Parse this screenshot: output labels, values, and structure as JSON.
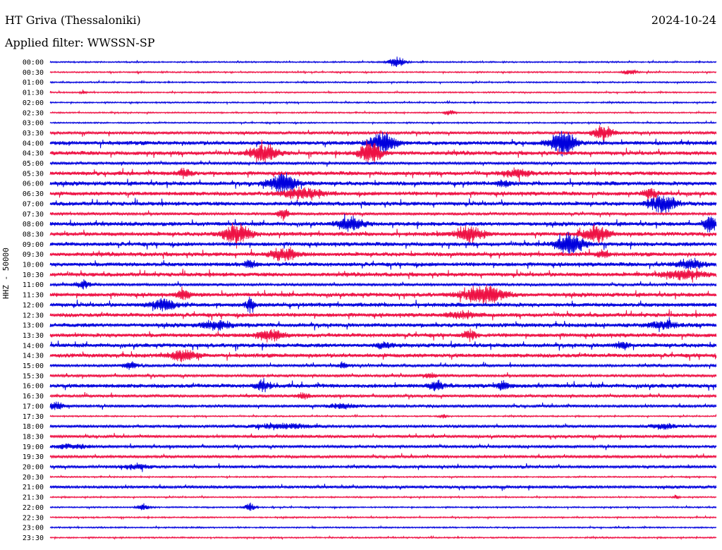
{
  "header": {
    "station": "HT Griva (Thessaloniki)",
    "date": "2024-10-24",
    "filter_prefix": "Applied filter:",
    "filter_name": "WWSSN-SP"
  },
  "y_axis_label": "HHZ - 50000",
  "colors": {
    "line_a": "#0000dd",
    "line_b": "#ee1144",
    "background": "#ffffff"
  },
  "chart_data": {
    "type": "line",
    "title": "HT Griva (Thessaloniki)",
    "subtitle": "Applied filter: WWSSN-SP",
    "ylabel": "HHZ - 50000",
    "xlabel": "",
    "rows": [
      {
        "label": "00:00",
        "amplitude": 1,
        "events": [
          {
            "pos": 0.52,
            "amp": 8,
            "width": 0.012
          }
        ]
      },
      {
        "label": "00:30",
        "amplitude": 1,
        "events": [
          {
            "pos": 0.87,
            "amp": 4,
            "width": 0.01
          }
        ]
      },
      {
        "label": "01:00",
        "amplitude": 1,
        "events": []
      },
      {
        "label": "01:30",
        "amplitude": 1,
        "events": [
          {
            "pos": 0.05,
            "amp": 3,
            "width": 0.004
          }
        ]
      },
      {
        "label": "02:00",
        "amplitude": 1,
        "events": []
      },
      {
        "label": "02:30",
        "amplitude": 1,
        "events": [
          {
            "pos": 0.6,
            "amp": 4,
            "width": 0.008
          }
        ]
      },
      {
        "label": "03:00",
        "amplitude": 1,
        "events": []
      },
      {
        "label": "03:30",
        "amplitude": 2,
        "events": [
          {
            "pos": 0.83,
            "amp": 10,
            "width": 0.015
          }
        ]
      },
      {
        "label": "04:00",
        "amplitude": 3,
        "events": [
          {
            "pos": 0.5,
            "amp": 14,
            "width": 0.02
          },
          {
            "pos": 0.77,
            "amp": 18,
            "width": 0.02
          }
        ]
      },
      {
        "label": "04:30",
        "amplitude": 3,
        "events": [
          {
            "pos": 0.32,
            "amp": 14,
            "width": 0.02
          },
          {
            "pos": 0.48,
            "amp": 20,
            "width": 0.015
          }
        ]
      },
      {
        "label": "05:00",
        "amplitude": 2,
        "events": []
      },
      {
        "label": "05:30",
        "amplitude": 3,
        "events": [
          {
            "pos": 0.2,
            "amp": 7,
            "width": 0.01
          },
          {
            "pos": 0.7,
            "amp": 6,
            "width": 0.02
          }
        ]
      },
      {
        "label": "06:00",
        "amplitude": 3,
        "events": [
          {
            "pos": 0.35,
            "amp": 16,
            "width": 0.02
          },
          {
            "pos": 0.68,
            "amp": 5,
            "width": 0.01
          }
        ]
      },
      {
        "label": "06:30",
        "amplitude": 3,
        "events": [
          {
            "pos": 0.38,
            "amp": 8,
            "width": 0.03
          },
          {
            "pos": 0.9,
            "amp": 7,
            "width": 0.01
          }
        ]
      },
      {
        "label": "07:00",
        "amplitude": 3,
        "events": [
          {
            "pos": 0.92,
            "amp": 12,
            "width": 0.02
          }
        ]
      },
      {
        "label": "07:30",
        "amplitude": 2,
        "events": [
          {
            "pos": 0.35,
            "amp": 8,
            "width": 0.01
          }
        ]
      },
      {
        "label": "08:00",
        "amplitude": 3,
        "events": [
          {
            "pos": 0.45,
            "amp": 10,
            "width": 0.02
          },
          {
            "pos": 0.99,
            "amp": 14,
            "width": 0.008
          }
        ]
      },
      {
        "label": "08:30",
        "amplitude": 3,
        "events": [
          {
            "pos": 0.28,
            "amp": 14,
            "width": 0.02
          },
          {
            "pos": 0.63,
            "amp": 12,
            "width": 0.02
          },
          {
            "pos": 0.82,
            "amp": 12,
            "width": 0.02
          }
        ]
      },
      {
        "label": "09:00",
        "amplitude": 3,
        "events": [
          {
            "pos": 0.78,
            "amp": 16,
            "width": 0.02
          }
        ]
      },
      {
        "label": "09:30",
        "amplitude": 3,
        "events": [
          {
            "pos": 0.35,
            "amp": 9,
            "width": 0.02
          },
          {
            "pos": 0.83,
            "amp": 6,
            "width": 0.01
          }
        ]
      },
      {
        "label": "10:00",
        "amplitude": 3,
        "events": [
          {
            "pos": 0.3,
            "amp": 6,
            "width": 0.01
          },
          {
            "pos": 0.96,
            "amp": 6,
            "width": 0.02
          }
        ]
      },
      {
        "label": "10:30",
        "amplitude": 3,
        "events": [
          {
            "pos": 0.95,
            "amp": 6,
            "width": 0.03
          }
        ]
      },
      {
        "label": "11:00",
        "amplitude": 2,
        "events": [
          {
            "pos": 0.05,
            "amp": 6,
            "width": 0.01
          }
        ]
      },
      {
        "label": "11:30",
        "amplitude": 3,
        "events": [
          {
            "pos": 0.65,
            "amp": 14,
            "width": 0.03
          },
          {
            "pos": 0.2,
            "amp": 8,
            "width": 0.01
          }
        ]
      },
      {
        "label": "12:00",
        "amplitude": 3,
        "events": [
          {
            "pos": 0.17,
            "amp": 8,
            "width": 0.02
          },
          {
            "pos": 0.3,
            "amp": 10,
            "width": 0.006
          }
        ]
      },
      {
        "label": "12:30",
        "amplitude": 3,
        "events": [
          {
            "pos": 0.62,
            "amp": 5,
            "width": 0.02
          }
        ]
      },
      {
        "label": "13:00",
        "amplitude": 3,
        "events": [
          {
            "pos": 0.25,
            "amp": 7,
            "width": 0.02
          },
          {
            "pos": 0.92,
            "amp": 6,
            "width": 0.02
          }
        ]
      },
      {
        "label": "13:30",
        "amplitude": 3,
        "events": [
          {
            "pos": 0.33,
            "amp": 7,
            "width": 0.02
          },
          {
            "pos": 0.63,
            "amp": 7,
            "width": 0.01
          }
        ]
      },
      {
        "label": "14:00",
        "amplitude": 3,
        "events": [
          {
            "pos": 0.5,
            "amp": 5,
            "width": 0.01
          },
          {
            "pos": 0.86,
            "amp": 5,
            "width": 0.01
          }
        ]
      },
      {
        "label": "14:30",
        "amplitude": 3,
        "events": [
          {
            "pos": 0.2,
            "amp": 8,
            "width": 0.02
          }
        ]
      },
      {
        "label": "15:00",
        "amplitude": 2,
        "events": [
          {
            "pos": 0.12,
            "amp": 6,
            "width": 0.01
          },
          {
            "pos": 0.44,
            "amp": 5,
            "width": 0.006
          }
        ]
      },
      {
        "label": "15:30",
        "amplitude": 2,
        "events": [
          {
            "pos": 0.57,
            "amp": 4,
            "width": 0.01
          }
        ]
      },
      {
        "label": "16:00",
        "amplitude": 3,
        "events": [
          {
            "pos": 0.32,
            "amp": 8,
            "width": 0.01
          },
          {
            "pos": 0.58,
            "amp": 8,
            "width": 0.01
          },
          {
            "pos": 0.68,
            "amp": 7,
            "width": 0.008
          }
        ]
      },
      {
        "label": "16:30",
        "amplitude": 2,
        "events": [
          {
            "pos": 0.38,
            "amp": 5,
            "width": 0.01
          }
        ]
      },
      {
        "label": "17:00",
        "amplitude": 2,
        "events": [
          {
            "pos": 0.01,
            "amp": 6,
            "width": 0.01
          },
          {
            "pos": 0.44,
            "amp": 4,
            "width": 0.02
          }
        ]
      },
      {
        "label": "17:30",
        "amplitude": 1,
        "events": [
          {
            "pos": 0.59,
            "amp": 3,
            "width": 0.005
          }
        ]
      },
      {
        "label": "18:00",
        "amplitude": 2,
        "events": [
          {
            "pos": 0.35,
            "amp": 4,
            "width": 0.04
          },
          {
            "pos": 0.92,
            "amp": 4,
            "width": 0.02
          }
        ]
      },
      {
        "label": "18:30",
        "amplitude": 2,
        "events": []
      },
      {
        "label": "19:00",
        "amplitude": 2,
        "events": [
          {
            "pos": 0.03,
            "amp": 3,
            "width": 0.03
          }
        ]
      },
      {
        "label": "19:30",
        "amplitude": 2,
        "events": []
      },
      {
        "label": "20:00",
        "amplitude": 2,
        "events": [
          {
            "pos": 0.13,
            "amp": 4,
            "width": 0.02
          }
        ]
      },
      {
        "label": "20:30",
        "amplitude": 1,
        "events": []
      },
      {
        "label": "21:00",
        "amplitude": 2,
        "events": []
      },
      {
        "label": "21:30",
        "amplitude": 1,
        "events": [
          {
            "pos": 0.94,
            "amp": 3,
            "width": 0.005
          }
        ]
      },
      {
        "label": "22:00",
        "amplitude": 1,
        "events": [
          {
            "pos": 0.14,
            "amp": 5,
            "width": 0.008
          },
          {
            "pos": 0.3,
            "amp": 6,
            "width": 0.008
          }
        ]
      },
      {
        "label": "22:30",
        "amplitude": 1,
        "events": []
      },
      {
        "label": "23:00",
        "amplitude": 1,
        "events": []
      },
      {
        "label": "23:30",
        "amplitude": 1,
        "events": []
      }
    ]
  }
}
